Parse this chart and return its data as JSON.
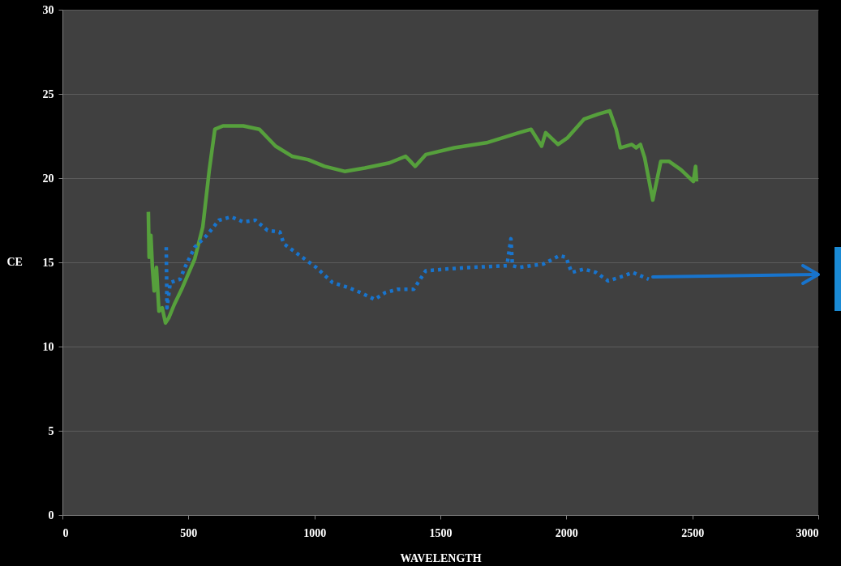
{
  "chart_data": {
    "type": "line",
    "xlabel": "WAVELENGTH",
    "ylabel": "CE",
    "xlim": [
      0,
      3000
    ],
    "xticks": [
      0,
      500,
      1000,
      1500,
      2000,
      2500,
      3000
    ],
    "ylim": [
      0,
      30
    ],
    "yticks": [
      0,
      5,
      10,
      15,
      20,
      25,
      30
    ],
    "grid": "y",
    "series": [
      {
        "color": "#56a03c",
        "line_style": "solid",
        "x": [
          341,
          344,
          351,
          357,
          364,
          373,
          383,
          396,
          409,
          422,
          444,
          476,
          525,
          557,
          583,
          605,
          637,
          718,
          782,
          846,
          911,
          975,
          1040,
          1120,
          1200,
          1297,
          1362,
          1400,
          1442,
          1555,
          1683,
          1812,
          1860,
          1902,
          1918,
          1967,
          2005,
          2070,
          2127,
          2172,
          2198,
          2214,
          2260,
          2277,
          2294,
          2311,
          2343,
          2375,
          2407,
          2455,
          2504,
          2513,
          2517
        ],
        "values": [
          18.0,
          15.3,
          16.6,
          14.7,
          13.3,
          14.7,
          12.1,
          12.3,
          11.4,
          11.7,
          12.5,
          13.5,
          15.2,
          17.1,
          20.5,
          22.9,
          23.1,
          23.1,
          22.9,
          21.9,
          21.3,
          21.1,
          20.7,
          20.4,
          20.6,
          20.9,
          21.3,
          20.7,
          21.4,
          21.8,
          22.1,
          22.7,
          22.9,
          21.9,
          22.7,
          22.0,
          22.4,
          23.5,
          23.8,
          24.0,
          22.9,
          21.8,
          22.0,
          21.8,
          22.0,
          21.2,
          18.7,
          21.0,
          21.0,
          20.5,
          19.8,
          20.7,
          19.8
        ]
      },
      {
        "color": "#1874cd",
        "line_style": "dotted",
        "x": [
          412,
          415,
          428,
          467,
          486,
          525,
          573,
          621,
          670,
          718,
          766,
          814,
          863,
          879,
          943,
          1007,
          1072,
          1136,
          1184,
          1239,
          1281,
          1329,
          1394,
          1442,
          1522,
          1619,
          1764,
          1780,
          1786,
          1812,
          1909,
          1973,
          1999,
          2021,
          2070,
          2118,
          2166,
          2230,
          2263,
          2327
        ],
        "values": [
          15.9,
          12.3,
          13.8,
          14.0,
          14.7,
          15.9,
          16.6,
          17.5,
          17.7,
          17.4,
          17.5,
          16.9,
          16.8,
          16.1,
          15.4,
          14.7,
          13.8,
          13.5,
          13.2,
          12.8,
          13.2,
          13.4,
          13.4,
          14.5,
          14.6,
          14.7,
          14.8,
          16.4,
          14.8,
          14.7,
          14.9,
          15.4,
          15.3,
          14.4,
          14.6,
          14.4,
          13.9,
          14.2,
          14.4,
          14.0
        ]
      }
    ]
  }
}
